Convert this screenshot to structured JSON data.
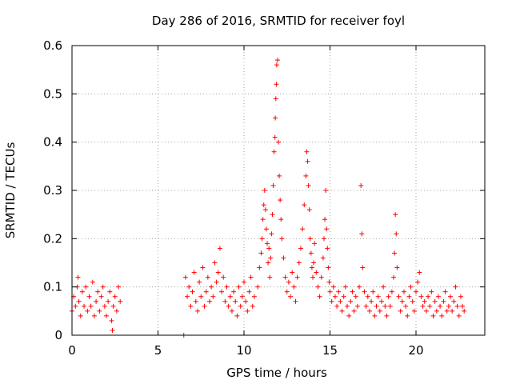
{
  "chart_data": {
    "type": "scatter",
    "title": "Day 286 of 2016, SRMTID for receiver foyl",
    "xlabel": "GPS time / hours",
    "ylabel": "SRMTID / TECUs",
    "xlim": [
      0,
      24
    ],
    "ylim": [
      0,
      0.6
    ],
    "xticks": [
      0,
      5,
      10,
      15,
      20
    ],
    "xtick_labels": [
      "0",
      "5",
      "10",
      "15",
      "20"
    ],
    "yticks": [
      0,
      0.1,
      0.2,
      0.3,
      0.4,
      0.5,
      0.6
    ],
    "ytick_labels": [
      "0",
      "0.1",
      "0.2",
      "0.3",
      "0.4",
      "0.5",
      "0.6"
    ],
    "grid": true,
    "marker": "+",
    "color": "#ff0000",
    "series": [
      {
        "name": "SRMTID",
        "x": [
          0.0,
          0.1,
          0.2,
          0.3,
          0.35,
          0.4,
          0.5,
          0.6,
          0.7,
          0.8,
          0.9,
          1.0,
          1.1,
          1.2,
          1.3,
          1.4,
          1.5,
          1.6,
          1.7,
          1.8,
          1.9,
          2.0,
          2.1,
          2.2,
          2.3,
          2.35,
          2.4,
          2.5,
          2.6,
          2.7,
          2.8,
          6.5,
          6.6,
          6.7,
          6.8,
          6.9,
          7.0,
          7.1,
          7.2,
          7.3,
          7.4,
          7.5,
          7.6,
          7.7,
          7.8,
          7.9,
          8.0,
          8.1,
          8.2,
          8.3,
          8.4,
          8.5,
          8.6,
          8.7,
          8.8,
          8.9,
          9.0,
          9.1,
          9.2,
          9.3,
          9.4,
          9.5,
          9.6,
          9.7,
          9.8,
          9.9,
          10.0,
          10.1,
          10.2,
          10.3,
          10.4,
          10.5,
          10.6,
          10.8,
          10.9,
          11.0,
          11.05,
          11.1,
          11.15,
          11.2,
          11.25,
          11.3,
          11.35,
          11.4,
          11.45,
          11.5,
          11.55,
          11.6,
          11.65,
          11.7,
          11.75,
          11.8,
          11.82,
          11.85,
          11.88,
          11.9,
          11.95,
          12.0,
          12.05,
          12.1,
          12.15,
          12.2,
          12.3,
          12.4,
          12.5,
          12.6,
          12.7,
          12.8,
          12.9,
          13.0,
          13.1,
          13.2,
          13.3,
          13.4,
          13.5,
          13.6,
          13.65,
          13.7,
          13.75,
          13.8,
          13.85,
          13.9,
          13.95,
          14.0,
          14.05,
          14.1,
          14.2,
          14.3,
          14.4,
          14.5,
          14.6,
          14.65,
          14.7,
          14.75,
          14.8,
          14.85,
          14.9,
          14.95,
          15.0,
          15.1,
          15.2,
          15.3,
          15.4,
          15.5,
          15.6,
          15.7,
          15.8,
          15.9,
          16.0,
          16.1,
          16.2,
          16.3,
          16.4,
          16.5,
          16.6,
          16.7,
          16.8,
          16.85,
          16.9,
          17.0,
          17.1,
          17.2,
          17.3,
          17.4,
          17.5,
          17.6,
          17.7,
          17.8,
          17.9,
          18.0,
          18.1,
          18.2,
          18.3,
          18.4,
          18.5,
          18.6,
          18.7,
          18.75,
          18.8,
          18.85,
          18.9,
          19.0,
          19.1,
          19.2,
          19.3,
          19.4,
          19.5,
          19.6,
          19.7,
          19.8,
          19.9,
          20.0,
          20.1,
          20.2,
          20.3,
          20.4,
          20.5,
          20.6,
          20.7,
          20.8,
          20.9,
          21.0,
          21.1,
          21.2,
          21.3,
          21.4,
          21.5,
          21.6,
          21.7,
          21.8,
          21.9,
          22.0,
          22.1,
          22.2,
          22.3,
          22.4,
          22.5,
          22.6,
          22.7,
          22.8
        ],
        "y": [
          0.05,
          0.08,
          0.06,
          0.1,
          0.12,
          0.07,
          0.04,
          0.09,
          0.06,
          0.1,
          0.05,
          0.08,
          0.06,
          0.11,
          0.04,
          0.07,
          0.09,
          0.05,
          0.08,
          0.1,
          0.06,
          0.04,
          0.07,
          0.09,
          0.03,
          0.01,
          0.06,
          0.08,
          0.05,
          0.1,
          0.07,
          0.0,
          0.12,
          0.08,
          0.1,
          0.06,
          0.09,
          0.13,
          0.07,
          0.05,
          0.11,
          0.08,
          0.14,
          0.06,
          0.09,
          0.12,
          0.07,
          0.1,
          0.08,
          0.15,
          0.11,
          0.13,
          0.18,
          0.09,
          0.12,
          0.07,
          0.1,
          0.06,
          0.08,
          0.05,
          0.09,
          0.07,
          0.04,
          0.1,
          0.06,
          0.08,
          0.11,
          0.07,
          0.05,
          0.09,
          0.12,
          0.06,
          0.08,
          0.1,
          0.14,
          0.17,
          0.2,
          0.24,
          0.27,
          0.3,
          0.26,
          0.22,
          0.19,
          0.15,
          0.18,
          0.12,
          0.16,
          0.21,
          0.25,
          0.31,
          0.38,
          0.41,
          0.45,
          0.49,
          0.52,
          0.56,
          0.57,
          0.4,
          0.33,
          0.28,
          0.24,
          0.2,
          0.16,
          0.12,
          0.09,
          0.11,
          0.08,
          0.13,
          0.1,
          0.07,
          0.12,
          0.15,
          0.18,
          0.22,
          0.27,
          0.33,
          0.38,
          0.36,
          0.31,
          0.26,
          0.2,
          0.17,
          0.14,
          0.12,
          0.15,
          0.19,
          0.13,
          0.1,
          0.08,
          0.12,
          0.16,
          0.2,
          0.24,
          0.3,
          0.22,
          0.18,
          0.14,
          0.11,
          0.09,
          0.07,
          0.1,
          0.08,
          0.06,
          0.09,
          0.07,
          0.05,
          0.08,
          0.1,
          0.06,
          0.04,
          0.07,
          0.09,
          0.05,
          0.08,
          0.06,
          0.1,
          0.31,
          0.21,
          0.14,
          0.09,
          0.06,
          0.08,
          0.05,
          0.07,
          0.09,
          0.04,
          0.06,
          0.08,
          0.05,
          0.07,
          0.1,
          0.06,
          0.04,
          0.08,
          0.06,
          0.09,
          0.12,
          0.17,
          0.25,
          0.21,
          0.14,
          0.08,
          0.05,
          0.07,
          0.09,
          0.06,
          0.04,
          0.08,
          0.1,
          0.07,
          0.05,
          0.09,
          0.11,
          0.13,
          0.08,
          0.06,
          0.07,
          0.05,
          0.08,
          0.06,
          0.09,
          0.04,
          0.07,
          0.05,
          0.08,
          0.06,
          0.04,
          0.07,
          0.09,
          0.05,
          0.06,
          0.08,
          0.05,
          0.07,
          0.1,
          0.06,
          0.04,
          0.08,
          0.06,
          0.05
        ]
      }
    ]
  }
}
